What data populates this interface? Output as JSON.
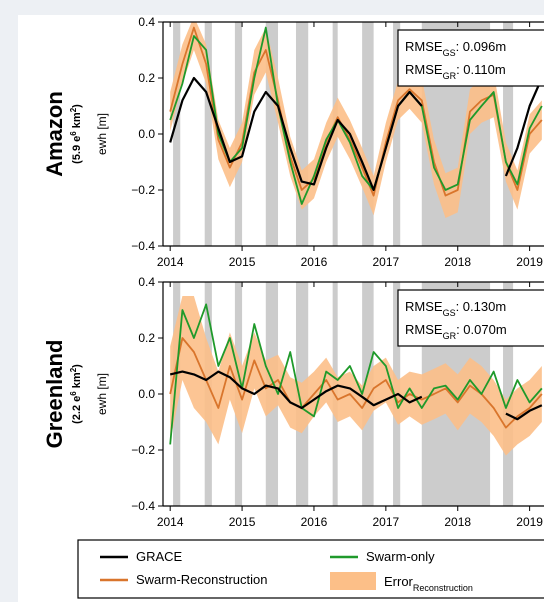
{
  "chart_data": [
    {
      "type": "line",
      "region": "Amazon",
      "area": [
        "(5.9 e",
        "6",
        " km",
        "2",
        ")"
      ],
      "y_label": "ewh [m]",
      "xlim": [
        2013.9,
        2019.2
      ],
      "ylim": [
        -0.4,
        0.4
      ],
      "xticks": [
        2014,
        2015,
        2016,
        2017,
        2018,
        2019
      ],
      "yticks": [
        0.4,
        0.2,
        {
          "value": 0,
          "label": "0.0"
        },
        {
          "value": -0.2,
          "label": "−0.2"
        },
        {
          "value": -0.4,
          "label": "−0.4"
        }
      ],
      "missing_months": [
        [
          2014.04,
          2014.14
        ],
        [
          2014.48,
          2014.58
        ],
        [
          2014.9,
          2015.0
        ],
        [
          2015.33,
          2015.5
        ],
        [
          2015.75,
          2015.92
        ],
        [
          2016.26,
          2016.33
        ],
        [
          2016.67,
          2016.83
        ],
        [
          2017.1,
          2017.2
        ],
        [
          2017.5,
          2018.45
        ],
        [
          2018.63,
          2018.77
        ]
      ],
      "x": [
        2014,
        2014.17,
        2014.33,
        2014.5,
        2014.67,
        2014.83,
        2015,
        2015.17,
        2015.33,
        2015.5,
        2015.67,
        2015.83,
        2016,
        2016.17,
        2016.33,
        2016.5,
        2016.67,
        2016.83,
        2017,
        2017.17,
        2017.33,
        2017.5,
        2017.67,
        2017.83,
        2018,
        2018.17,
        2018.33,
        2018.5,
        2018.67,
        2018.83,
        2019,
        2019.17
      ],
      "series": [
        {
          "name": "GRACE",
          "color": "#000000",
          "values": [
            -0.03,
            0.12,
            0.2,
            0.15,
            0.02,
            -0.1,
            -0.08,
            0.08,
            0.15,
            0.1,
            -0.05,
            -0.17,
            -0.18,
            -0.05,
            0.05,
            0.0,
            -0.1,
            -0.2,
            -0.05,
            0.1,
            0.15,
            0.1,
            null,
            null,
            null,
            null,
            null,
            null,
            -0.15,
            -0.05,
            0.1,
            0.2
          ]
        },
        {
          "name": "Swarm-only",
          "color": "#1f9a2b",
          "values": [
            0.05,
            0.18,
            0.35,
            0.3,
            0.0,
            -0.1,
            -0.05,
            0.2,
            0.38,
            0.1,
            -0.1,
            -0.25,
            -0.15,
            -0.02,
            0.05,
            -0.03,
            -0.15,
            -0.2,
            -0.05,
            0.1,
            0.15,
            0.1,
            -0.12,
            -0.2,
            -0.18,
            0.05,
            0.1,
            0.15,
            -0.1,
            -0.18,
            0.02,
            0.1
          ]
        },
        {
          "name": "Swarm-Reconstruction",
          "color": "#d9752c",
          "values": [
            0.08,
            0.25,
            0.38,
            0.25,
            -0.02,
            -0.12,
            -0.03,
            0.22,
            0.3,
            0.12,
            -0.08,
            -0.2,
            -0.16,
            -0.03,
            0.06,
            -0.02,
            -0.12,
            -0.22,
            -0.03,
            0.12,
            0.16,
            0.12,
            -0.1,
            -0.22,
            -0.2,
            0.08,
            0.12,
            0.14,
            -0.1,
            -0.2,
            0.0,
            0.05
          ]
        }
      ],
      "band": {
        "name": "Error",
        "name_sub": "Reconstruction",
        "color": "#fcbf88",
        "upper": [
          0.15,
          0.32,
          0.42,
          0.32,
          0.05,
          -0.05,
          0.04,
          0.3,
          0.38,
          0.2,
          -0.01,
          -0.13,
          -0.09,
          0.04,
          0.13,
          0.05,
          -0.05,
          -0.15,
          0.04,
          0.19,
          0.23,
          0.2,
          -0.02,
          -0.14,
          -0.12,
          0.16,
          0.2,
          0.22,
          -0.03,
          -0.13,
          0.07,
          0.12
        ],
        "lower": [
          0.01,
          0.18,
          0.3,
          0.18,
          -0.09,
          -0.19,
          -0.1,
          0.14,
          0.22,
          0.04,
          -0.15,
          -0.27,
          -0.23,
          -0.1,
          -0.01,
          -0.09,
          -0.19,
          -0.29,
          -0.1,
          0.05,
          0.09,
          0.04,
          -0.18,
          -0.3,
          -0.28,
          0.0,
          0.04,
          0.06,
          -0.17,
          -0.27,
          -0.07,
          -0.02
        ]
      },
      "rmse": [
        {
          "label": "RMSE",
          "sub": "GS",
          "text": ": 0.096m"
        },
        {
          "label": "RMSE",
          "sub": "GR",
          "text": ": 0.110m"
        }
      ]
    },
    {
      "type": "line",
      "region": "Greenland",
      "area": [
        "(2.2 e",
        "6",
        " km",
        "2",
        ")"
      ],
      "y_label": "ewh [m]",
      "xlim": [
        2013.9,
        2019.2
      ],
      "ylim": [
        -0.4,
        0.4
      ],
      "xticks": [
        2014,
        2015,
        2016,
        2017,
        2018,
        2019
      ],
      "yticks": [
        0.4,
        0.2,
        {
          "value": 0,
          "label": "0.0"
        },
        {
          "value": -0.2,
          "label": "−0.2"
        },
        {
          "value": -0.4,
          "label": "−0.4"
        }
      ],
      "missing_months": [
        [
          2014.04,
          2014.14
        ],
        [
          2014.48,
          2014.58
        ],
        [
          2014.9,
          2015.0
        ],
        [
          2015.33,
          2015.5
        ],
        [
          2015.75,
          2015.92
        ],
        [
          2016.26,
          2016.33
        ],
        [
          2016.67,
          2016.83
        ],
        [
          2017.1,
          2017.2
        ],
        [
          2017.5,
          2018.45
        ],
        [
          2018.63,
          2018.77
        ]
      ],
      "x": [
        2014,
        2014.17,
        2014.33,
        2014.5,
        2014.67,
        2014.83,
        2015,
        2015.17,
        2015.33,
        2015.5,
        2015.67,
        2015.83,
        2016,
        2016.17,
        2016.33,
        2016.5,
        2016.67,
        2016.83,
        2017,
        2017.17,
        2017.33,
        2017.5,
        2017.67,
        2017.83,
        2018,
        2018.17,
        2018.33,
        2018.5,
        2018.67,
        2018.83,
        2019,
        2019.17
      ],
      "series": [
        {
          "name": "GRACE",
          "color": "#000000",
          "values": [
            0.07,
            0.08,
            0.07,
            0.05,
            0.08,
            0.06,
            0.02,
            0.0,
            0.03,
            0.02,
            -0.03,
            -0.05,
            -0.02,
            0.01,
            0.03,
            0.02,
            -0.01,
            -0.04,
            -0.02,
            0.0,
            -0.03,
            -0.01,
            null,
            null,
            null,
            null,
            null,
            null,
            -0.07,
            -0.09,
            -0.06,
            -0.04
          ]
        },
        {
          "name": "Swarm-only",
          "color": "#1f9a2b",
          "values": [
            -0.18,
            0.3,
            0.2,
            0.32,
            0.1,
            0.2,
            0.02,
            0.25,
            0.1,
            0.0,
            0.15,
            -0.05,
            -0.08,
            0.08,
            0.05,
            0.1,
            0.0,
            0.15,
            0.1,
            -0.05,
            0.02,
            -0.05,
            0.02,
            0.03,
            -0.02,
            0.05,
            0.0,
            0.08,
            -0.05,
            0.05,
            -0.03,
            0.02
          ]
        },
        {
          "name": "Swarm-Reconstruction",
          "color": "#d9752c",
          "values": [
            0.0,
            0.2,
            0.15,
            0.05,
            -0.05,
            0.1,
            -0.02,
            0.12,
            0.02,
            0.05,
            -0.03,
            -0.05,
            0.0,
            0.05,
            -0.02,
            0.0,
            -0.05,
            0.02,
            0.05,
            -0.03,
            0.0,
            -0.02,
            0.0,
            0.02,
            -0.03,
            0.03,
            0.0,
            -0.05,
            -0.12,
            -0.08,
            -0.05,
            0.0
          ]
        }
      ],
      "band": {
        "name": "Error",
        "name_sub": "Reconstruction",
        "color": "#fcbf88",
        "upper": [
          0.17,
          0.35,
          0.35,
          0.2,
          0.08,
          0.22,
          0.1,
          0.22,
          0.12,
          0.14,
          0.06,
          0.04,
          0.08,
          0.13,
          0.06,
          0.08,
          0.03,
          0.1,
          0.13,
          0.05,
          0.08,
          0.07,
          0.09,
          0.11,
          0.07,
          0.13,
          0.1,
          0.05,
          -0.02,
          0.02,
          0.05,
          0.1
        ],
        "lower": [
          -0.17,
          0.05,
          -0.05,
          -0.1,
          -0.18,
          -0.02,
          -0.14,
          0.02,
          -0.08,
          -0.04,
          -0.12,
          -0.14,
          -0.08,
          -0.03,
          -0.1,
          -0.08,
          -0.13,
          -0.06,
          -0.03,
          -0.11,
          -0.08,
          -0.11,
          -0.09,
          -0.07,
          -0.13,
          -0.07,
          -0.1,
          -0.15,
          -0.22,
          -0.18,
          -0.15,
          -0.1
        ]
      },
      "rmse": [
        {
          "label": "RMSE",
          "sub": "GS",
          "text": ": 0.130m"
        },
        {
          "label": "RMSE",
          "sub": "GR",
          "text": ": 0.070m"
        }
      ]
    }
  ]
}
